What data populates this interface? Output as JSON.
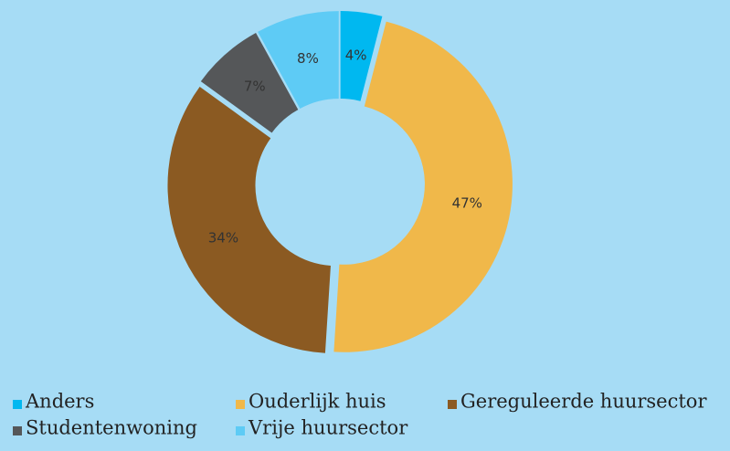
{
  "chart_data": {
    "type": "donut",
    "categories": [
      "Anders",
      "Ouderlijk huis",
      "Gereguleerde huursector",
      "Studentenwoning",
      "Vrije huursector"
    ],
    "values": [
      4,
      47,
      34,
      7,
      8
    ],
    "value_labels": [
      "4%",
      "47%",
      "34%",
      "7%",
      "8%"
    ],
    "colors": [
      "#00b8f0",
      "#f0b84a",
      "#8b5a22",
      "#555759",
      "#5ecbf5"
    ]
  }
}
